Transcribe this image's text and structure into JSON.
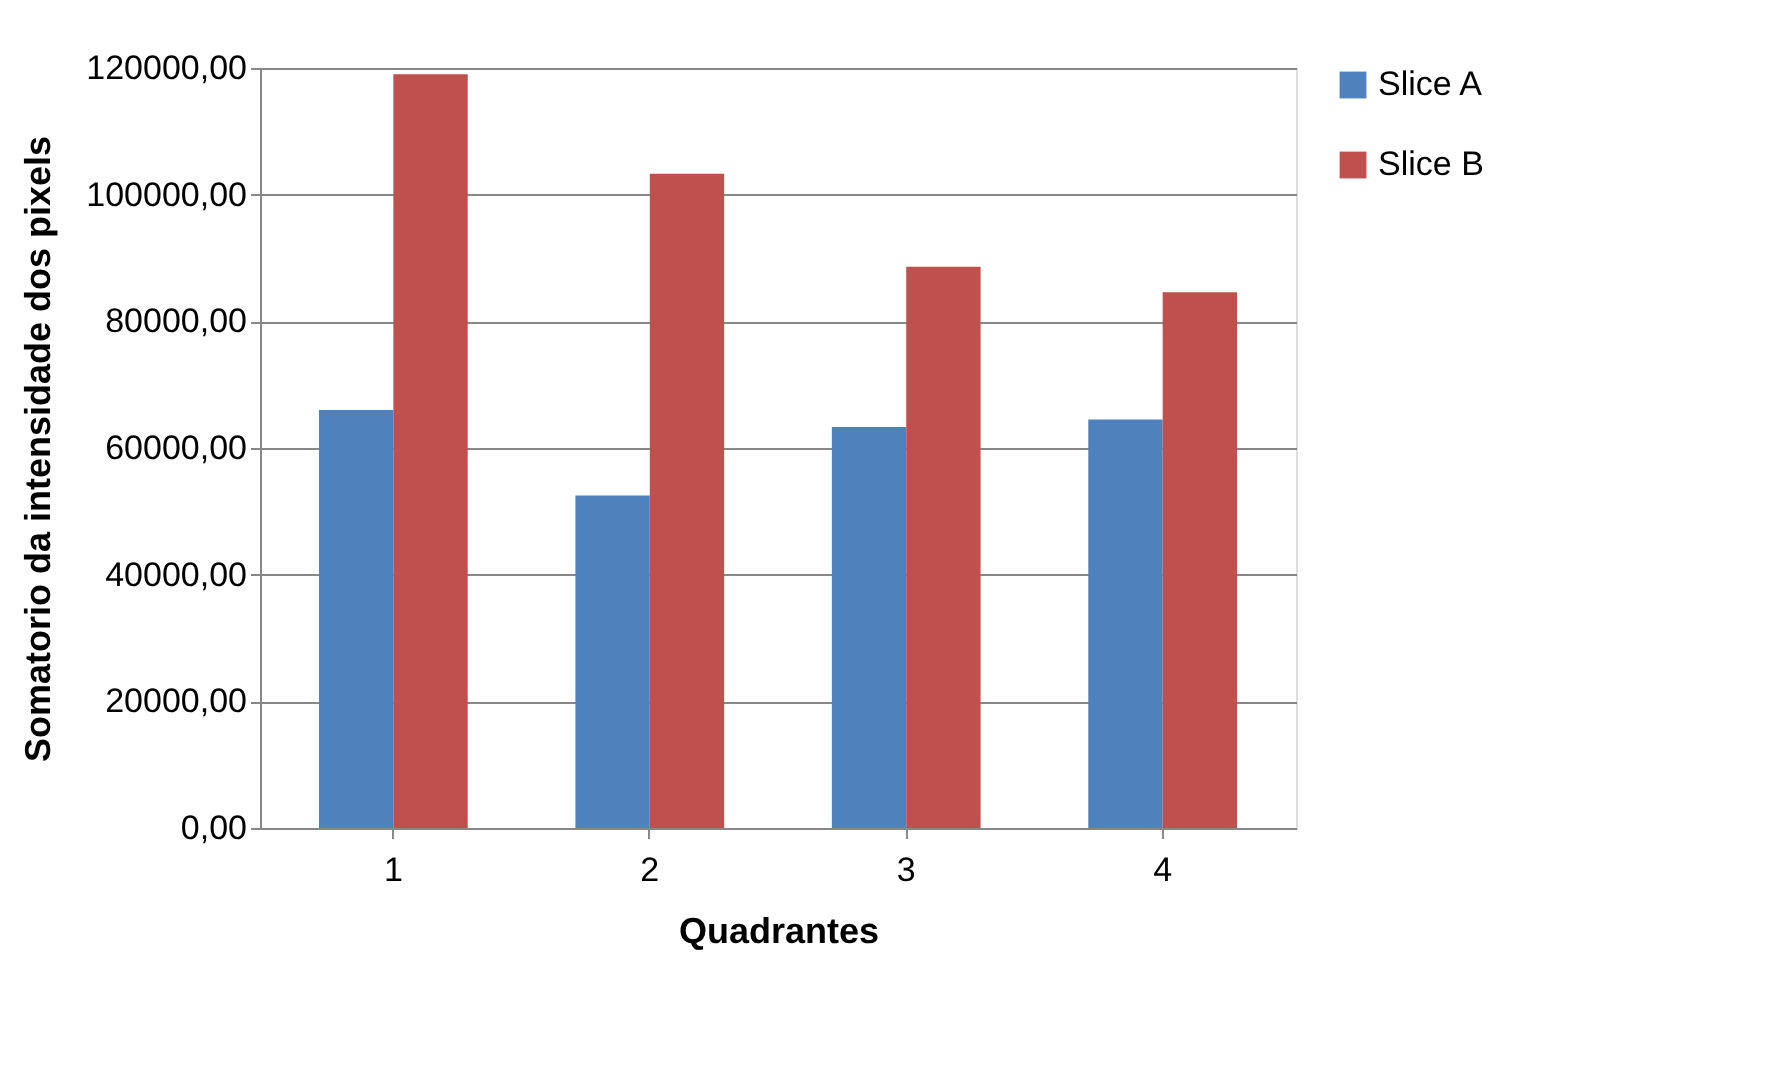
{
  "chart_data": {
    "type": "bar",
    "xlabel": "Quadrantes",
    "ylabel": "Somatorio da intensidade dos pixels",
    "categories": [
      "1",
      "2",
      "3",
      "4"
    ],
    "series": [
      {
        "name": "Slice A",
        "color": "#4f81bd",
        "values": [
          66000,
          52500,
          63300,
          64500
        ]
      },
      {
        "name": "Slice B",
        "color": "#c0504d",
        "values": [
          119000,
          103300,
          88600,
          84600
        ]
      }
    ],
    "ylim": [
      0,
      120000
    ],
    "yticks": [
      {
        "value": 0,
        "label": "0,00"
      },
      {
        "value": 20000,
        "label": "20000,00"
      },
      {
        "value": 40000,
        "label": "40000,00"
      },
      {
        "value": 60000,
        "label": "60000,00"
      },
      {
        "value": 80000,
        "label": "80000,00"
      },
      {
        "value": 100000,
        "label": "100000,00"
      },
      {
        "value": 120000,
        "label": "120000,00"
      }
    ],
    "grid": "y",
    "legend": "right"
  }
}
